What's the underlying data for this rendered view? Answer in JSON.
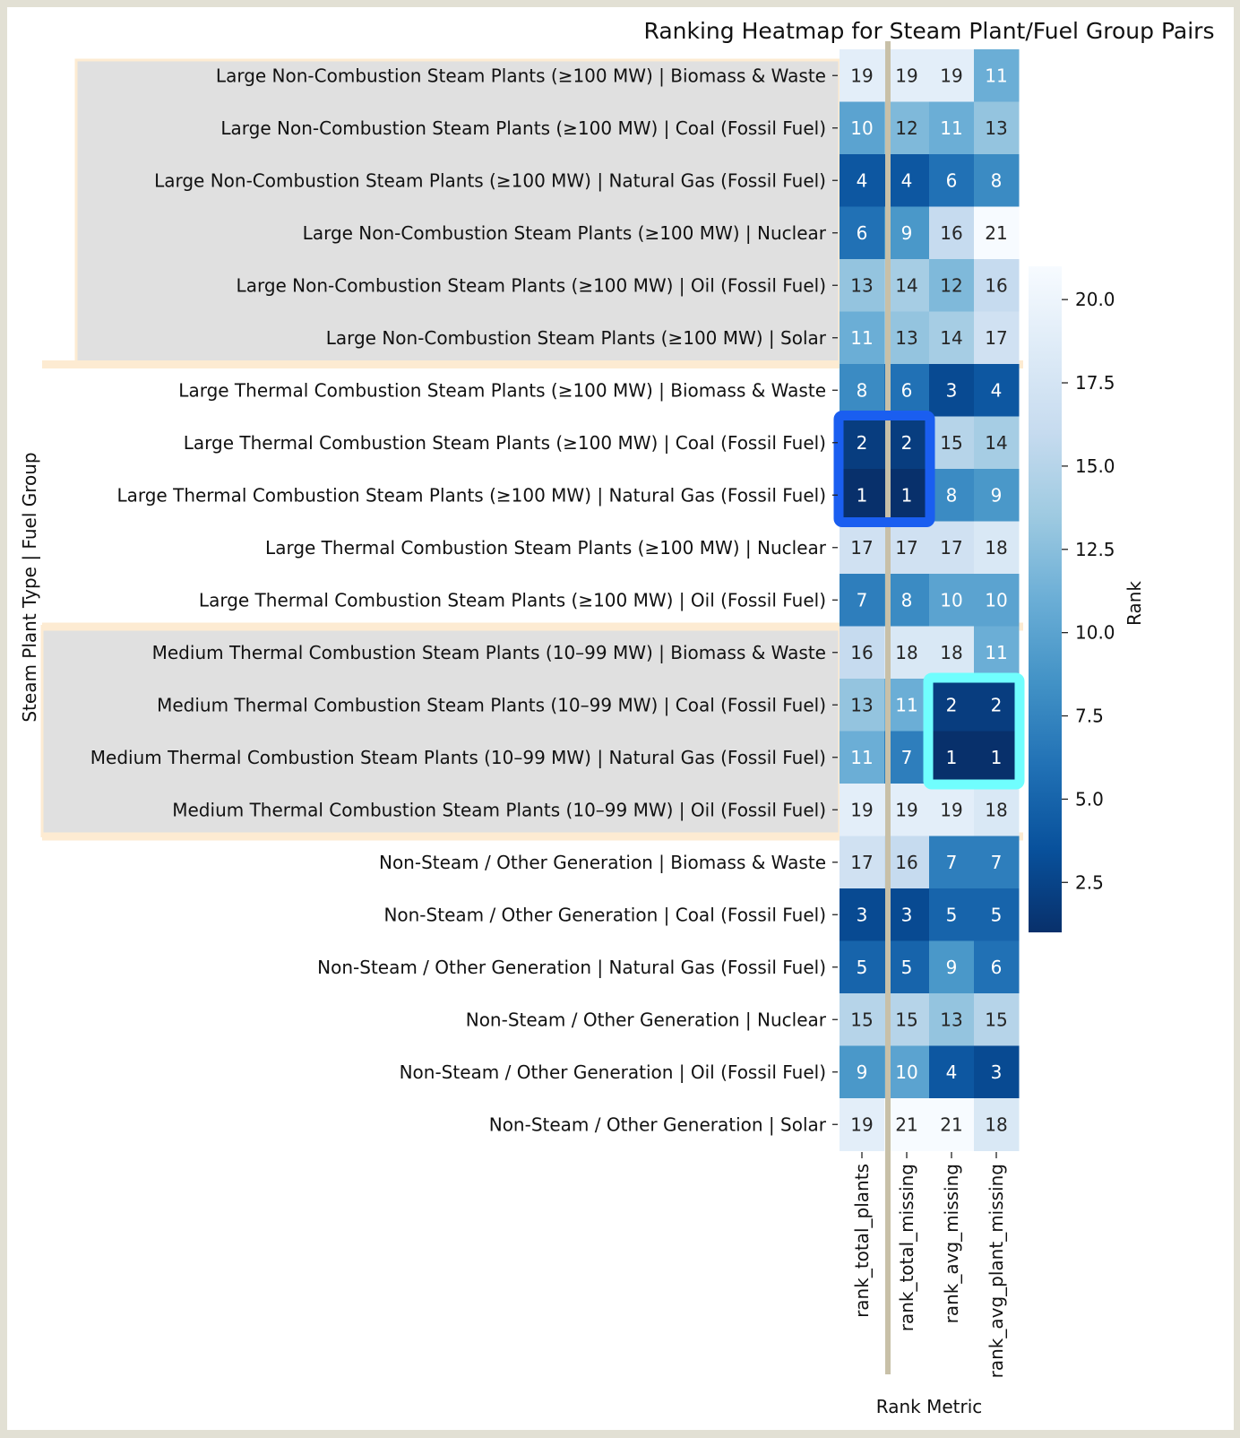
{
  "chart_data": {
    "type": "heatmap",
    "title": "Ranking Heatmap for Steam Plant/Fuel Group Pairs",
    "xlabel": "Rank Metric",
    "ylabel": "Steam Plant Type | Fuel Group",
    "colorbar_label": "Rank",
    "colormap": "Blues (reversed: low rank = dark)",
    "vmin": 1,
    "vmax": 21,
    "colorbar_ticks": [
      "2.5",
      "5.0",
      "7.5",
      "10.0",
      "12.5",
      "15.0",
      "17.5",
      "20.0"
    ],
    "columns": [
      "rank_total_plants",
      "rank_total_missing",
      "rank_avg_missing",
      "rank_avg_plant_missing"
    ],
    "rows": [
      "Large Non-Combustion Steam Plants (≥100 MW) | Biomass & Waste",
      "Large Non-Combustion Steam Plants (≥100 MW) | Coal (Fossil Fuel)",
      "Large Non-Combustion Steam Plants (≥100 MW) | Natural Gas (Fossil Fuel)",
      "Large Non-Combustion Steam Plants (≥100 MW) | Nuclear",
      "Large Non-Combustion Steam Plants (≥100 MW) | Oil (Fossil Fuel)",
      "Large Non-Combustion Steam Plants (≥100 MW) | Solar",
      "Large Thermal Combustion Steam Plants (≥100 MW) | Biomass & Waste",
      "Large Thermal Combustion Steam Plants (≥100 MW) | Coal (Fossil Fuel)",
      "Large Thermal Combustion Steam Plants (≥100 MW) | Natural Gas (Fossil Fuel)",
      "Large Thermal Combustion Steam Plants (≥100 MW) | Nuclear",
      "Large Thermal Combustion Steam Plants (≥100 MW) | Oil (Fossil Fuel)",
      "Medium Thermal Combustion Steam Plants (10–99 MW) | Biomass & Waste",
      "Medium Thermal Combustion Steam Plants (10–99 MW) | Coal (Fossil Fuel)",
      "Medium Thermal Combustion Steam Plants (10–99 MW) | Natural Gas (Fossil Fuel)",
      "Medium Thermal Combustion Steam Plants (10–99 MW) | Oil (Fossil Fuel)",
      "Non-Steam / Other Generation | Biomass & Waste",
      "Non-Steam / Other Generation | Coal (Fossil Fuel)",
      "Non-Steam / Other Generation | Natural Gas (Fossil Fuel)",
      "Non-Steam / Other Generation | Nuclear",
      "Non-Steam / Other Generation | Oil (Fossil Fuel)",
      "Non-Steam / Other Generation | Solar"
    ],
    "values": [
      [
        19,
        19,
        19,
        11
      ],
      [
        10,
        12,
        11,
        13
      ],
      [
        4,
        4,
        6,
        8
      ],
      [
        6,
        9,
        16,
        21
      ],
      [
        13,
        14,
        12,
        16
      ],
      [
        11,
        13,
        14,
        17
      ],
      [
        8,
        6,
        3,
        4
      ],
      [
        2,
        2,
        15,
        14
      ],
      [
        1,
        1,
        8,
        9
      ],
      [
        17,
        17,
        17,
        18
      ],
      [
        7,
        8,
        10,
        10
      ],
      [
        16,
        18,
        18,
        11
      ],
      [
        13,
        11,
        2,
        2
      ],
      [
        11,
        7,
        1,
        1
      ],
      [
        19,
        19,
        19,
        18
      ],
      [
        17,
        16,
        7,
        7
      ],
      [
        3,
        3,
        5,
        5
      ],
      [
        5,
        5,
        9,
        6
      ],
      [
        15,
        15,
        13,
        15
      ],
      [
        9,
        10,
        4,
        3
      ],
      [
        19,
        21,
        21,
        18
      ]
    ],
    "shaded_row_groups": [
      [
        0,
        5
      ],
      [
        11,
        14
      ]
    ],
    "highlights": [
      {
        "rows": [
          7,
          8
        ],
        "cols": [
          0,
          1
        ],
        "color": "#1a5ef0"
      },
      {
        "rows": [
          12,
          13
        ],
        "cols": [
          2,
          3
        ],
        "color": "#70fefe"
      }
    ],
    "colors": {
      "shade": "#e0e0e0",
      "group_separator": "#fdebd2",
      "divider": "#c8c0a8",
      "frame": "#e2e0d4"
    }
  }
}
